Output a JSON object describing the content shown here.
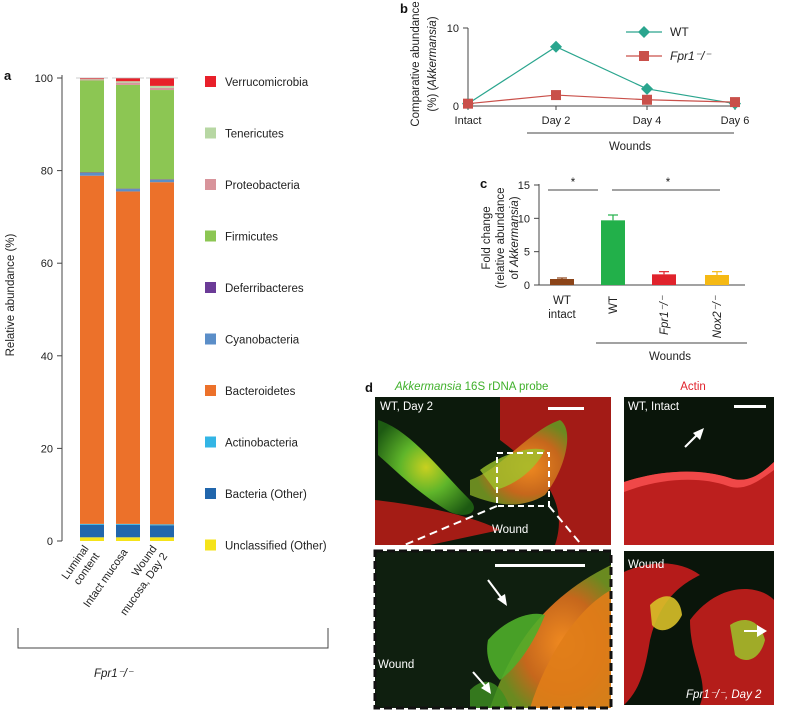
{
  "panel_a": {
    "letter": "a",
    "ylabel": "Relative abundance (%)",
    "yticks": [
      "0",
      "20",
      "40",
      "60",
      "80",
      "100"
    ],
    "categories": [
      "Luminal content",
      "Intact mucosa",
      "Wound mucosa, Day 2"
    ],
    "group_label": "Fpr1⁻/⁻",
    "legend": [
      {
        "name": "Verrucomicrobia",
        "color": "#e8202a"
      },
      {
        "name": "Tenericutes",
        "color": "#b7d7a3"
      },
      {
        "name": "Proteobacteria",
        "color": "#d8949b"
      },
      {
        "name": "Firmicutes",
        "color": "#8cc653"
      },
      {
        "name": "Deferribacteres",
        "color": "#6b3b97"
      },
      {
        "name": "Cyanobacteria",
        "color": "#5b8ec8"
      },
      {
        "name": "Bacteroidetes",
        "color": "#ec712a"
      },
      {
        "name": "Actinobacteria",
        "color": "#33b5e5"
      },
      {
        "name": "Bacteria (Other)",
        "color": "#2166ac"
      },
      {
        "name": "Unclassified (Other)",
        "color": "#f5e31a"
      }
    ]
  },
  "panel_b": {
    "letter": "b",
    "ylabel_line1": "Comparative abundance",
    "ylabel_line2_pre": "(%) (",
    "ylabel_line2_it": "Akkermansia",
    "ylabel_line2_post": ")",
    "yticks": [
      "0",
      "10"
    ],
    "xticks": [
      "Intact",
      "Day 2",
      "Day 4",
      "Day 6"
    ],
    "group_label": "Wounds",
    "legend": [
      {
        "name": "WT",
        "color": "#2aa58e"
      },
      {
        "name": "Fpr1⁻/⁻",
        "color": "#c9504a"
      }
    ]
  },
  "panel_c": {
    "letter": "c",
    "ylabel_line1": "Fold change",
    "ylabel_line2": "(relative abundance",
    "ylabel_line3_pre": "of ",
    "ylabel_line3_it": "Akkermansia",
    "ylabel_line3_post": ")",
    "yticks": [
      "0",
      "5",
      "10",
      "15"
    ],
    "categories": [
      "WT intact",
      "WT",
      "Fpr1⁻/⁻",
      "Nox2⁻/⁻"
    ],
    "group_label": "Wounds",
    "sig1": "*",
    "sig2": "*"
  },
  "panel_d": {
    "letter": "d",
    "header_green_it": "Akkermansia",
    "header_green_rest": " 16S rDNA probe",
    "header_red": "Actin",
    "img1_label": "WT, Day 2",
    "img1_wound": "Wound",
    "img2_wound": "Wound",
    "img3_label": "WT, Intact",
    "img4_label": "Wound",
    "img4_corner": "Fpr1⁻/⁻, Day 2"
  },
  "chart_data": [
    {
      "type": "bar",
      "title": "",
      "stacked": true,
      "ylabel": "Relative abundance (%)",
      "ylim": [
        0,
        100
      ],
      "categories": [
        "Luminal content",
        "Intact mucosa",
        "Wound mucosa, Day 2"
      ],
      "series": [
        {
          "name": "Unclassified (Other)",
          "color": "#f5e31a",
          "values": [
            0.8,
            0.8,
            0.8
          ]
        },
        {
          "name": "Bacteria (Other)",
          "color": "#2166ac",
          "values": [
            2.7,
            2.7,
            2.6
          ]
        },
        {
          "name": "Actinobacteria",
          "color": "#33b5e5",
          "values": [
            0.2,
            0.2,
            0.2
          ]
        },
        {
          "name": "Bacteroidetes",
          "color": "#ec712a",
          "values": [
            75.2,
            71.8,
            73.9
          ]
        },
        {
          "name": "Cyanobacteria",
          "color": "#5b8ec8",
          "values": [
            0.6,
            0.5,
            0.5
          ]
        },
        {
          "name": "Deferribacteres",
          "color": "#6b3b97",
          "values": [
            0.1,
            0.1,
            0.1
          ]
        },
        {
          "name": "Firmicutes",
          "color": "#8cc653",
          "values": [
            19.9,
            22.4,
            19.3
          ]
        },
        {
          "name": "Proteobacteria",
          "color": "#d8949b",
          "values": [
            0.2,
            0.5,
            0.5
          ]
        },
        {
          "name": "Tenericutes",
          "color": "#b7d7a3",
          "values": [
            0.1,
            0.3,
            0.4
          ]
        },
        {
          "name": "Verrucomicrobia",
          "color": "#e8202a",
          "values": [
            0.2,
            0.7,
            1.7
          ]
        }
      ]
    },
    {
      "type": "line",
      "title": "",
      "ylabel": "Comparative abundance (%) (Akkermansia)",
      "ylim": [
        0,
        10
      ],
      "x": [
        "Intact",
        "Day 2",
        "Day 4",
        "Day 6"
      ],
      "series": [
        {
          "name": "WT",
          "color": "#2aa58e",
          "marker": "diamond",
          "values": [
            0.3,
            7.6,
            2.2,
            0.3
          ]
        },
        {
          "name": "Fpr1⁻/⁻",
          "color": "#c9504a",
          "marker": "square",
          "values": [
            0.3,
            1.4,
            0.8,
            0.5
          ]
        }
      ]
    },
    {
      "type": "bar",
      "title": "",
      "ylabel": "Fold change (relative abundance of Akkermansia)",
      "ylim": [
        0,
        15
      ],
      "categories": [
        "WT intact",
        "WT",
        "Fpr1⁻/⁻",
        "Nox2⁻/⁻"
      ],
      "values": [
        0.9,
        9.7,
        1.6,
        1.5
      ],
      "errors": [
        0.15,
        0.8,
        0.4,
        0.5
      ],
      "colors": [
        "#8b4418",
        "#22b04a",
        "#e0232c",
        "#f5b914"
      ]
    }
  ]
}
